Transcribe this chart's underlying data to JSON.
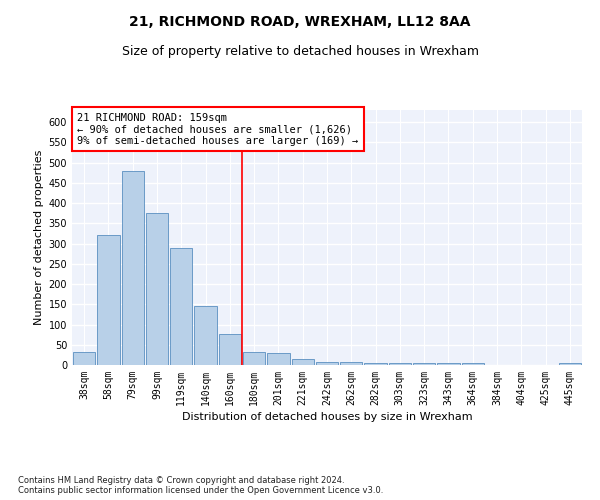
{
  "title": "21, RICHMOND ROAD, WREXHAM, LL12 8AA",
  "subtitle": "Size of property relative to detached houses in Wrexham",
  "xlabel": "Distribution of detached houses by size in Wrexham",
  "ylabel": "Number of detached properties",
  "categories": [
    "38sqm",
    "58sqm",
    "79sqm",
    "99sqm",
    "119sqm",
    "140sqm",
    "160sqm",
    "180sqm",
    "201sqm",
    "221sqm",
    "242sqm",
    "262sqm",
    "282sqm",
    "303sqm",
    "323sqm",
    "343sqm",
    "364sqm",
    "384sqm",
    "404sqm",
    "425sqm",
    "445sqm"
  ],
  "values": [
    32,
    320,
    480,
    375,
    290,
    145,
    77,
    32,
    30,
    16,
    8,
    8,
    5,
    5,
    5,
    5,
    5,
    0,
    0,
    0,
    6
  ],
  "bar_color": "#b8d0e8",
  "bar_edge_color": "#5a8fc0",
  "vline_color": "red",
  "vline_x": 6.5,
  "annotation_text": "21 RICHMOND ROAD: 159sqm\n← 90% of detached houses are smaller (1,626)\n9% of semi-detached houses are larger (169) →",
  "annotation_box_color": "white",
  "annotation_box_edge_color": "red",
  "ylim": [
    0,
    630
  ],
  "yticks": [
    0,
    50,
    100,
    150,
    200,
    250,
    300,
    350,
    400,
    450,
    500,
    550,
    600
  ],
  "background_color": "#eef2fb",
  "grid_color": "white",
  "footnote": "Contains HM Land Registry data © Crown copyright and database right 2024.\nContains public sector information licensed under the Open Government Licence v3.0.",
  "title_fontsize": 10,
  "subtitle_fontsize": 9,
  "xlabel_fontsize": 8,
  "ylabel_fontsize": 8,
  "tick_fontsize": 7,
  "annotation_fontsize": 7.5,
  "footnote_fontsize": 6
}
